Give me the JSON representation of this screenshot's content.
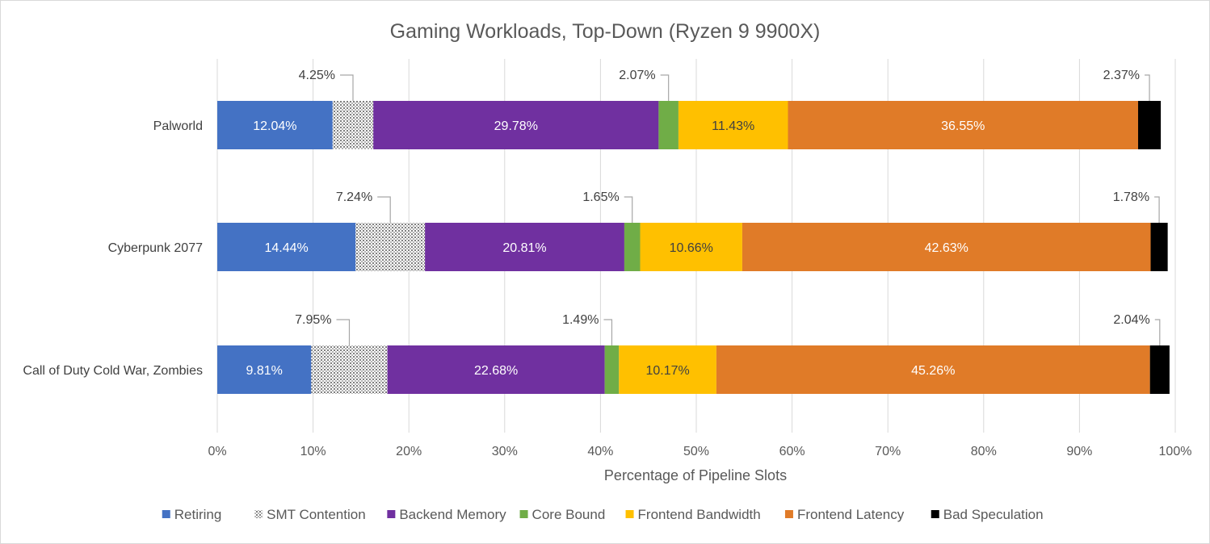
{
  "chart_data": {
    "type": "stacked-bar-horizontal",
    "title": "Gaming Workloads, Top-Down (Ryzen 9 9900X)",
    "xlabel": "Percentage of Pipeline Slots",
    "ylabel": "",
    "xlim": [
      0,
      100
    ],
    "x_ticks": [
      "0%",
      "10%",
      "20%",
      "30%",
      "40%",
      "50%",
      "60%",
      "70%",
      "80%",
      "90%",
      "100%"
    ],
    "grid": "vertical",
    "legend_position": "bottom",
    "categories": [
      "Palworld",
      "Cyberpunk 2077",
      "Call of Duty Cold War, Zombies"
    ],
    "series": [
      {
        "name": "Retiring",
        "color": "#4472c4",
        "pattern": "solid",
        "values": [
          12.04,
          14.44,
          9.81
        ],
        "labels": [
          "12.04%",
          "14.44%",
          "9.81%"
        ],
        "label_mode": "inside"
      },
      {
        "name": "SMT Contention",
        "color": "#a5a5a5",
        "pattern": "dotted",
        "values": [
          4.25,
          7.24,
          7.95
        ],
        "labels": [
          "4.25%",
          "7.24%",
          "7.95%"
        ],
        "label_mode": "callout"
      },
      {
        "name": "Backend Memory",
        "color": "#7030a0",
        "pattern": "solid",
        "values": [
          29.78,
          20.81,
          22.68
        ],
        "labels": [
          "29.78%",
          "20.81%",
          "22.68%"
        ],
        "label_mode": "inside"
      },
      {
        "name": "Core Bound",
        "color": "#70ad47",
        "pattern": "solid",
        "values": [
          2.07,
          1.65,
          1.49
        ],
        "labels": [
          "2.07%",
          "1.65%",
          "1.49%"
        ],
        "label_mode": "callout"
      },
      {
        "name": "Frontend Bandwidth",
        "color": "#ffc000",
        "pattern": "solid",
        "values": [
          11.43,
          10.66,
          10.17
        ],
        "labels": [
          "11.43%",
          "10.66%",
          "10.17%"
        ],
        "label_mode": "inside"
      },
      {
        "name": "Frontend Latency",
        "color": "#e07b28",
        "pattern": "solid",
        "values": [
          36.55,
          42.63,
          45.26
        ],
        "labels": [
          "36.55%",
          "42.63%",
          "45.26%"
        ],
        "label_mode": "inside"
      },
      {
        "name": "Bad Speculation",
        "color": "#000000",
        "pattern": "solid",
        "values": [
          2.37,
          1.78,
          2.04
        ],
        "labels": [
          "2.37%",
          "1.78%",
          "2.04%"
        ],
        "label_mode": "callout"
      }
    ]
  }
}
